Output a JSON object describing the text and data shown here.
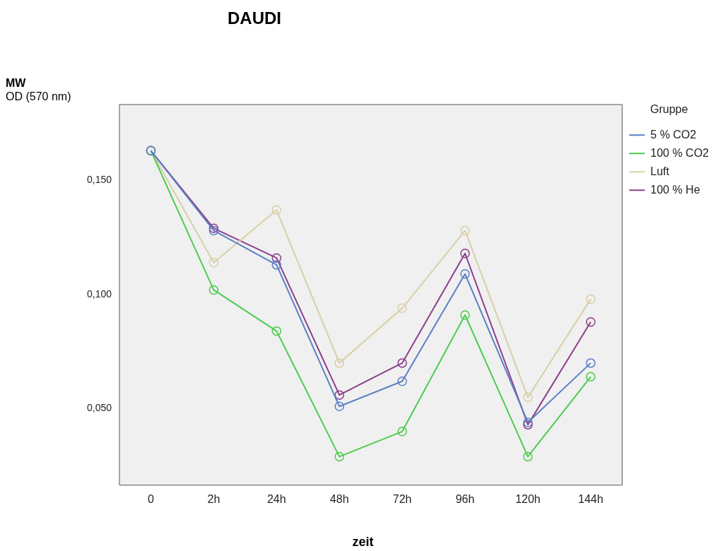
{
  "chart_data": {
    "type": "line",
    "title": "DAUDI",
    "ylabel": "MW\nOD (570 nm)",
    "xlabel": "zeit",
    "legend_title": "Gruppe",
    "legend": "right",
    "grid": false,
    "marker": "circle",
    "line_style": "solid",
    "categories": [
      "0",
      "2h",
      "24h",
      "48h",
      "72h",
      "96h",
      "120h",
      "144h"
    ],
    "ylim": [
      0.0165,
      0.1832
    ],
    "yticks": [
      {
        "value": 0.05,
        "label": "0,050"
      },
      {
        "value": 0.1,
        "label": "0,100"
      },
      {
        "value": 0.15,
        "label": "0,150"
      }
    ],
    "series": [
      {
        "name": "5 % CO2",
        "color": "#5b7fc6",
        "values": [
          0.163,
          0.128,
          0.113,
          0.051,
          0.062,
          0.109,
          0.044,
          0.07
        ]
      },
      {
        "name": "100 % CO2",
        "color": "#4ccc4c",
        "values": [
          0.163,
          0.102,
          0.084,
          0.029,
          0.04,
          0.091,
          0.029,
          0.064
        ]
      },
      {
        "name": "Luft",
        "color": "#d9cfa6",
        "values": [
          0.163,
          0.114,
          0.137,
          0.07,
          0.094,
          0.128,
          0.055,
          0.098
        ]
      },
      {
        "name": "100 % He",
        "color": "#8b3f8b",
        "values": [
          0.163,
          0.129,
          0.116,
          0.056,
          0.07,
          0.118,
          0.043,
          0.088
        ]
      }
    ]
  }
}
